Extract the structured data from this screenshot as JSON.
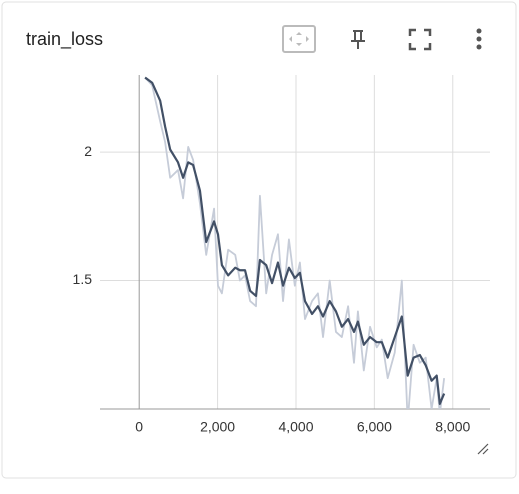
{
  "chart_data": {
    "type": "line",
    "title": "train_loss",
    "x": [
      150,
      330,
      535,
      660,
      790,
      990,
      1120,
      1250,
      1375,
      1550,
      1710,
      1910,
      2010,
      2110,
      2270,
      2450,
      2570,
      2700,
      2830,
      2980,
      3080,
      3240,
      3390,
      3540,
      3670,
      3820,
      3970,
      4100,
      4230,
      4410,
      4560,
      4690,
      4860,
      5020,
      5170,
      5330,
      5480,
      5580,
      5730,
      5890,
      6060,
      6190,
      6340,
      6520,
      6700,
      6850,
      7000,
      7160,
      7310,
      7460,
      7590,
      7670,
      7780
    ],
    "series": [
      {
        "color": "#c6ccd8",
        "values": [
          2.29,
          2.26,
          2.12,
          2.04,
          1.9,
          1.93,
          1.82,
          2.02,
          1.97,
          1.8,
          1.6,
          1.78,
          1.48,
          1.45,
          1.62,
          1.6,
          1.5,
          1.52,
          1.42,
          1.4,
          1.83,
          1.45,
          1.6,
          1.68,
          1.42,
          1.66,
          1.48,
          1.57,
          1.35,
          1.42,
          1.45,
          1.28,
          1.5,
          1.3,
          1.28,
          1.4,
          1.18,
          1.38,
          1.15,
          1.32,
          1.24,
          1.27,
          1.12,
          1.22,
          1.5,
          0.95,
          1.25,
          1.18,
          1.2,
          1.0,
          1.12,
          0.98,
          1.12
        ]
      },
      {
        "color": "#425066",
        "values": [
          2.29,
          2.27,
          2.2,
          2.1,
          2.01,
          1.96,
          1.9,
          1.96,
          1.95,
          1.85,
          1.65,
          1.73,
          1.68,
          1.56,
          1.52,
          1.55,
          1.54,
          1.54,
          1.46,
          1.44,
          1.58,
          1.56,
          1.49,
          1.57,
          1.48,
          1.55,
          1.51,
          1.53,
          1.42,
          1.37,
          1.4,
          1.36,
          1.42,
          1.38,
          1.32,
          1.35,
          1.3,
          1.34,
          1.25,
          1.28,
          1.26,
          1.26,
          1.2,
          1.28,
          1.36,
          1.13,
          1.2,
          1.21,
          1.17,
          1.11,
          1.13,
          1.02,
          1.06
        ]
      }
    ],
    "xlim": [
      -1000,
      8950
    ],
    "xticks": [
      0,
      {
        "value": 2000,
        "label": "2,000"
      },
      {
        "value": 4000,
        "label": "4,000"
      },
      {
        "value": 6000,
        "label": "6,000"
      },
      {
        "value": 8000,
        "label": "8,000"
      }
    ],
    "ylim": [
      1.0,
      2.3
    ],
    "yticks": [
      1.5,
      2
    ],
    "grid": true
  }
}
